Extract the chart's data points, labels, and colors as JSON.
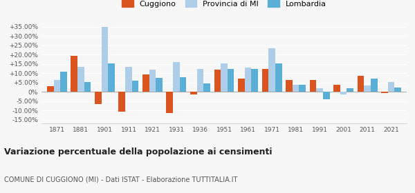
{
  "years": [
    1871,
    1881,
    1901,
    1911,
    1921,
    1931,
    1936,
    1951,
    1961,
    1971,
    1981,
    1991,
    2001,
    2011,
    2021
  ],
  "cuggiono": [
    3.0,
    19.5,
    -6.5,
    -10.5,
    9.5,
    -11.5,
    -1.5,
    12.0,
    7.0,
    12.5,
    6.5,
    6.5,
    4.0,
    8.5,
    -0.5
  ],
  "provincia_mi": [
    6.5,
    13.5,
    35.0,
    13.5,
    12.0,
    16.0,
    12.5,
    15.5,
    13.0,
    23.5,
    4.0,
    2.0,
    -1.5,
    3.5,
    5.5
  ],
  "lombardia": [
    11.0,
    5.5,
    15.5,
    6.0,
    7.5,
    8.0,
    4.5,
    12.5,
    12.5,
    15.5,
    4.0,
    -4.0,
    2.0,
    7.0,
    2.5
  ],
  "color_cuggiono": "#d9541e",
  "color_provincia": "#aecde8",
  "color_lombardia": "#5bafd6",
  "title": "Variazione percentuale della popolazione ai censimenti",
  "subtitle": "COMUNE DI CUGGIONO (MI) - Dati ISTAT - Elaborazione TUTTITALIA.IT",
  "ylabel_ticks": [
    "-15.00%",
    "-10.00%",
    "-5.00%",
    "0%",
    "+5.00%",
    "+10.00%",
    "+15.00%",
    "+20.00%",
    "+25.00%",
    "+30.00%",
    "+35.00%"
  ],
  "yticks": [
    -15,
    -10,
    -5,
    0,
    5,
    10,
    15,
    20,
    25,
    30,
    35
  ],
  "ylim": [
    -17,
    37
  ],
  "bg_color": "#f7f7f7",
  "legend_labels": [
    "Cuggiono",
    "Provincia di MI",
    "Lombardia"
  ]
}
